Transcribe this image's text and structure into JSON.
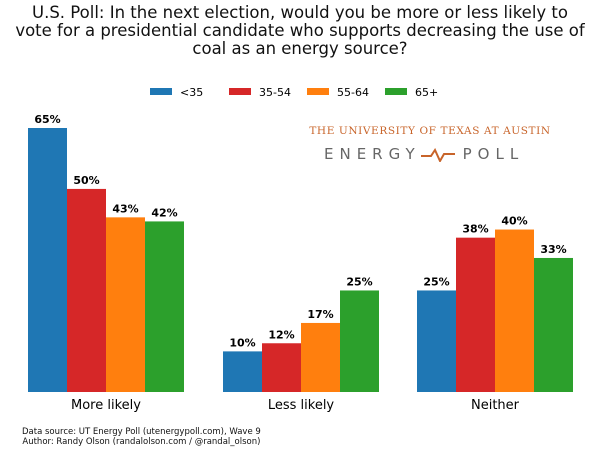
{
  "chart_data": {
    "type": "bar",
    "title": "U.S. Poll: In the next election, would you be more or less likely to vote for a presidential candidate who supports decreasing the use of coal as an energy source?",
    "title_lines": [
      "U.S. Poll: In the next election, would you be more or less likely to",
      "vote for a presidential candidate who supports decreasing the use of",
      "coal as an energy source?"
    ],
    "categories": [
      "More likely",
      "Less likely",
      "Neither"
    ],
    "series": [
      {
        "name": "<35",
        "values": [
          65,
          10,
          25
        ],
        "color": "#1f77b4"
      },
      {
        "name": "35-54",
        "values": [
          50,
          12,
          38
        ],
        "color": "#d62728"
      },
      {
        "name": "55-64",
        "values": [
          43,
          17,
          40
        ],
        "color": "#ff7f0e"
      },
      {
        "name": "65+",
        "values": [
          42,
          25,
          33
        ],
        "color": "#2ca02c"
      }
    ],
    "data_labels": [
      [
        "65%",
        "10%",
        "25%"
      ],
      [
        "50%",
        "12%",
        "38%"
      ],
      [
        "43%",
        "17%",
        "40%"
      ],
      [
        "42%",
        "25%",
        "33%"
      ]
    ],
    "ylim": [
      0,
      80
    ],
    "grid": false,
    "legend_placement": "top-center",
    "xlabel": "",
    "ylabel": ""
  },
  "logo": {
    "line1": "THE UNIVERSITY OF TEXAS AT AUSTIN",
    "word1": "ENERGY",
    "word2": "POLL",
    "accent": "#c8642a"
  },
  "footer": {
    "source": "Data source: UT Energy Poll (utenergypoll.com), Wave 9",
    "author": "Author: Randy Olson (randalolson.com / @randal_olson)"
  }
}
